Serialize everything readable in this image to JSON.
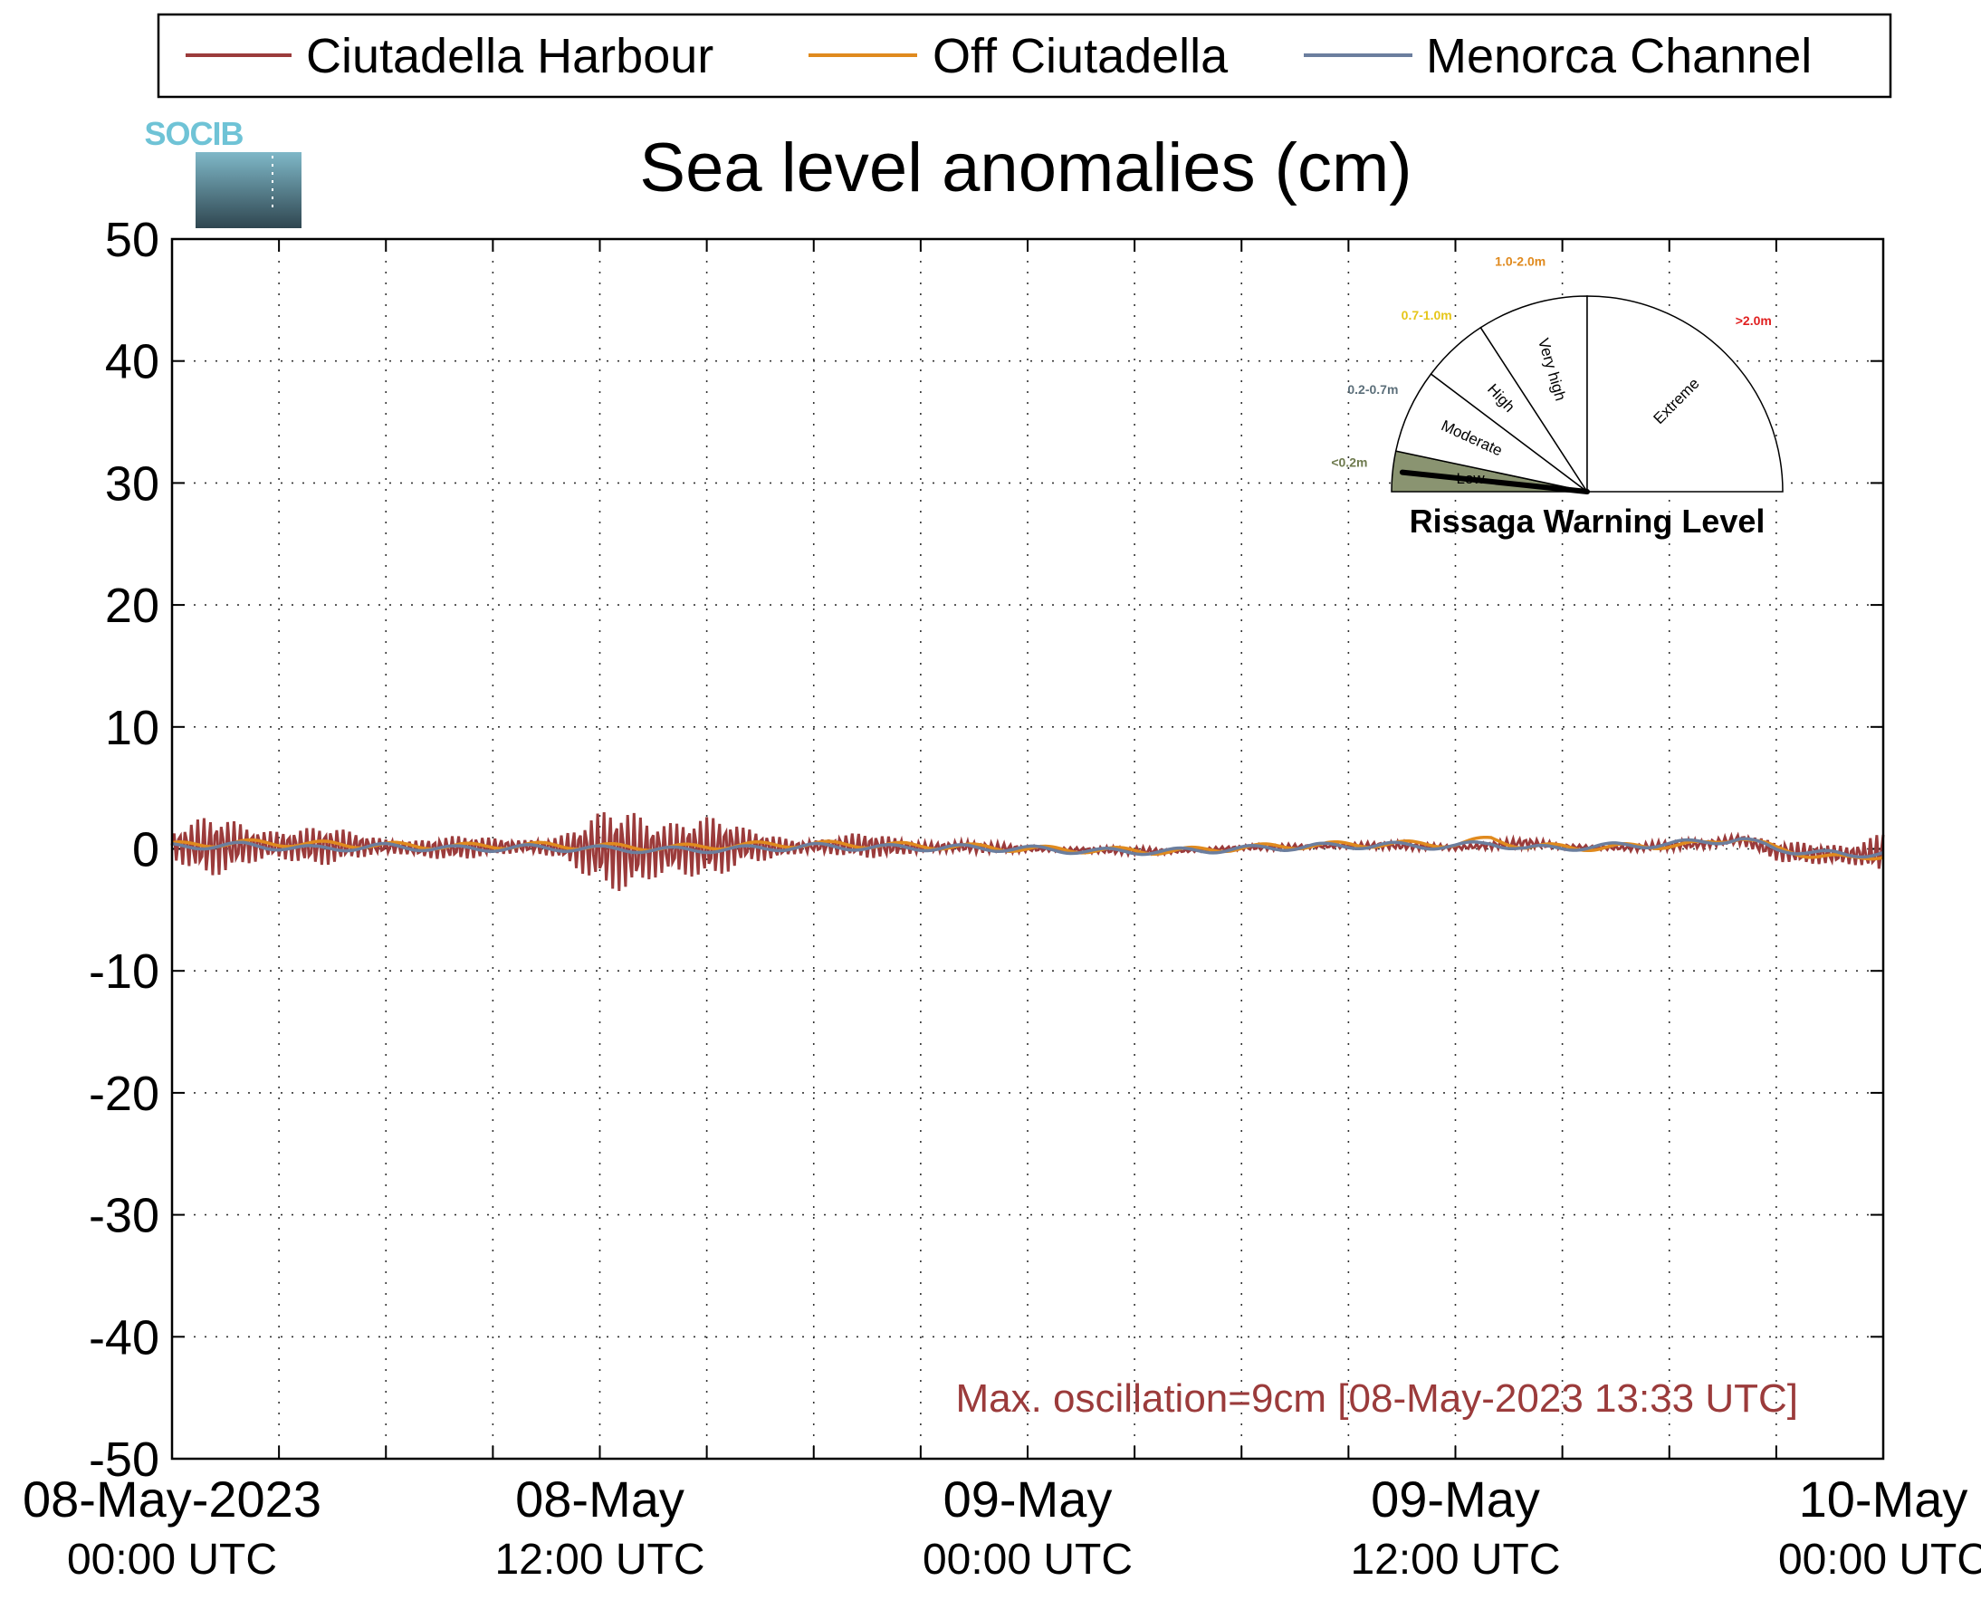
{
  "logo_text": "SOCIB",
  "chart_data": {
    "type": "line",
    "title": "Sea level anomalies (cm)",
    "xlabel": "",
    "ylabel": "",
    "ylim": [
      -50,
      50
    ],
    "yticks": [
      50,
      40,
      30,
      20,
      10,
      0,
      -10,
      -20,
      -30,
      -40,
      -50
    ],
    "xlim_hours": [
      0,
      48
    ],
    "grid": true,
    "legend_position": "top",
    "xtick_labels": [
      {
        "line1": "08-May-2023",
        "line2": "00:00 UTC"
      },
      {
        "line1": "08-May",
        "line2": "12:00 UTC"
      },
      {
        "line1": "09-May",
        "line2": "00:00 UTC"
      },
      {
        "line1": "09-May",
        "line2": "12:00 UTC"
      },
      {
        "line1": "10-May",
        "line2": "00:00 UTC"
      }
    ],
    "series": [
      {
        "name": "Ciutadella Harbour",
        "color": "#9B3B3B",
        "x_hours": [
          0,
          1,
          2,
          3,
          4,
          5,
          6,
          7,
          8,
          9,
          10,
          11,
          12,
          13,
          14,
          15,
          16,
          17,
          18,
          19,
          20,
          21,
          22,
          23,
          24,
          26,
          28,
          30,
          32,
          34,
          36,
          38,
          39,
          40,
          41,
          42,
          43,
          44,
          45,
          46,
          47,
          48
        ],
        "envelope": [
          1.5,
          2.5,
          2.5,
          2.2,
          1.8,
          1.2,
          1.0,
          1.2,
          1.0,
          0.8,
          1.0,
          1.5,
          3.0,
          4.3,
          4.2,
          3.0,
          1.5,
          1.5,
          0.8,
          1.0,
          1.0,
          0.8,
          0.6,
          0.4,
          0.3,
          0.3,
          0.3,
          0.2,
          0.3,
          0.3,
          0.4,
          0.4,
          0.3,
          0.3,
          0.3,
          0.4,
          0.6,
          0.7,
          0.8,
          1.0,
          1.5,
          2.5
        ],
        "baseline": [
          0.3,
          0.2,
          0.3,
          0.3,
          0.2,
          0.3,
          0.2,
          0.0,
          0.1,
          0.2,
          0.2,
          0.1,
          0.0,
          -0.2,
          0.0,
          0.1,
          0.3,
          0.1,
          0.2,
          0.3,
          0.2,
          0.1,
          0.2,
          0.1,
          0.0,
          -0.1,
          -0.2,
          0.1,
          0.2,
          0.3,
          0.1,
          0.5,
          0.2,
          0.1,
          0.1,
          0.3,
          0.4,
          0.8,
          -0.2,
          -0.4,
          -0.5,
          -0.3
        ]
      },
      {
        "name": "Off Ciutadella",
        "color": "#E08A1E",
        "x_hours": [
          0,
          2,
          4,
          6,
          8,
          10,
          12,
          14,
          16,
          18,
          20,
          22,
          24,
          26,
          28,
          30,
          32,
          34,
          36,
          37,
          38,
          40,
          42,
          43,
          44,
          45,
          46,
          47,
          48
        ],
        "values": [
          0.3,
          0.5,
          0.4,
          0.3,
          0.2,
          0.3,
          0.2,
          0.1,
          0.3,
          0.4,
          0.3,
          0.2,
          0.0,
          -0.1,
          -0.2,
          0.1,
          0.3,
          0.4,
          0.4,
          0.8,
          0.2,
          0.1,
          0.3,
          0.4,
          1.0,
          0.0,
          -0.5,
          -0.8,
          -0.5
        ]
      },
      {
        "name": "Menorca Channel",
        "color": "#6B7E9E",
        "x_hours": [
          0,
          2,
          4,
          6,
          8,
          10,
          12,
          14,
          16,
          18,
          20,
          22,
          24,
          26,
          28,
          30,
          32,
          34,
          36,
          37,
          38,
          40,
          42,
          43,
          44,
          45,
          46,
          47,
          48
        ],
        "values": [
          0.2,
          0.3,
          0.0,
          0.2,
          0.0,
          0.1,
          0.0,
          -0.1,
          0.0,
          0.2,
          0.1,
          0.1,
          0.0,
          -0.2,
          -0.2,
          0.0,
          0.2,
          0.3,
          0.2,
          0.5,
          0.0,
          0.2,
          0.4,
          0.6,
          0.8,
          0.0,
          -0.3,
          -0.5,
          -0.3
        ]
      }
    ],
    "annotation": "Max. oscillation=9cm [08-May-2023 13:33 UTC]",
    "annotation_color": "#9B3B3B"
  },
  "gauge": {
    "title": "Rissaga Warning Level",
    "current_level": "Low",
    "sectors": [
      {
        "label": "Low",
        "range": "<0.2m",
        "range_color": "#6E7A4E",
        "fill": "#8A9471"
      },
      {
        "label": "Moderate",
        "range": "0.2-0.7m",
        "range_color": "#5C6F7A",
        "fill": "#ffffff"
      },
      {
        "label": "High",
        "range": "0.7-1.0m",
        "range_color": "#E6C619",
        "fill": "#ffffff"
      },
      {
        "label": "Very high",
        "range": "1.0-2.0m",
        "range_color": "#E08A1E",
        "fill": "#ffffff"
      },
      {
        "label": "Extreme",
        "range": ">2.0m",
        "range_color": "#E02020",
        "fill": "#ffffff"
      }
    ]
  }
}
